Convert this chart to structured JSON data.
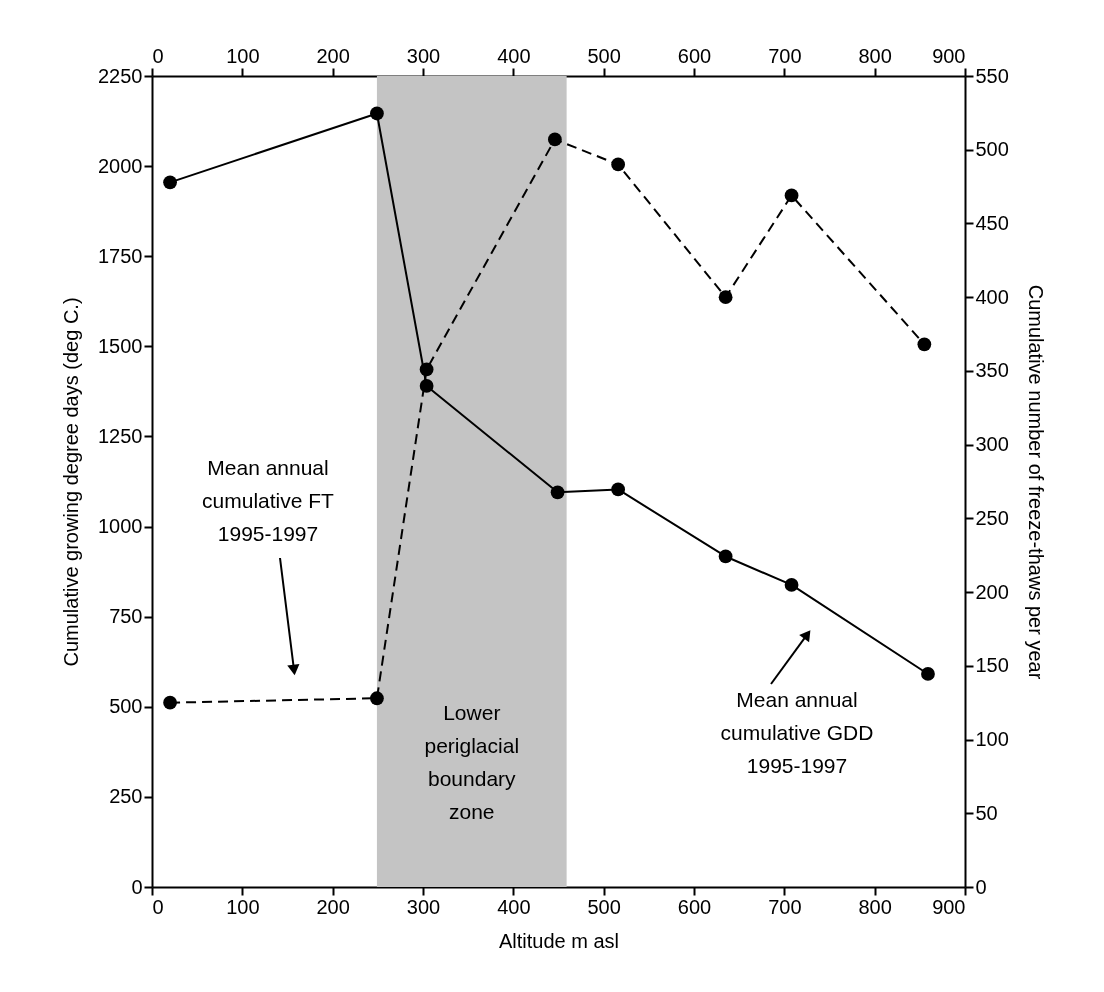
{
  "chart_data": {
    "type": "line",
    "xlabel": "Altitude m asl",
    "ylabel": "Cumulative growing degree days (deg C.)",
    "y2label": "Cumulative number of freeze-thaws per year",
    "xlim": [
      0,
      900
    ],
    "xticks": [
      0,
      100,
      200,
      300,
      400,
      500,
      600,
      700,
      800,
      900
    ],
    "x2lim": [
      0,
      900
    ],
    "x2ticks": [
      0,
      100,
      200,
      300,
      400,
      500,
      600,
      700,
      800,
      900
    ],
    "ylim": [
      0,
      2250
    ],
    "yticks": [
      0,
      250,
      500,
      750,
      1000,
      1250,
      1500,
      1750,
      2000,
      2250
    ],
    "y2lim": [
      0,
      550
    ],
    "y2ticks": [
      0,
      50,
      100,
      150,
      200,
      250,
      300,
      350,
      400,
      450,
      500,
      550
    ],
    "marker": "circle",
    "series": [
      {
        "color": "#000000",
        "line_style": "solid",
        "x": [
          20,
          249,
          304,
          449,
          516,
          635,
          708,
          859
        ],
        "values": [
          1955,
          2146,
          1390,
          1095,
          1103,
          917,
          838,
          591
        ]
      },
      {
        "color": "#000000",
        "line_style": "dashed",
        "axis": "y2",
        "x": [
          20,
          249,
          304,
          446,
          516,
          635,
          708,
          855
        ],
        "values": [
          125,
          128,
          351,
          507,
          490,
          400,
          469,
          368
        ]
      }
    ],
    "bands": [
      {
        "axis": "x",
        "from": 249,
        "to": 459,
        "label": "Lower periglacial boundary zone",
        "color": "#c4c4c4"
      }
    ],
    "annotations": [
      "Mean annual cumulative FT 1995-1997",
      "Mean annual cumulative GDD 1995-1997"
    ]
  }
}
